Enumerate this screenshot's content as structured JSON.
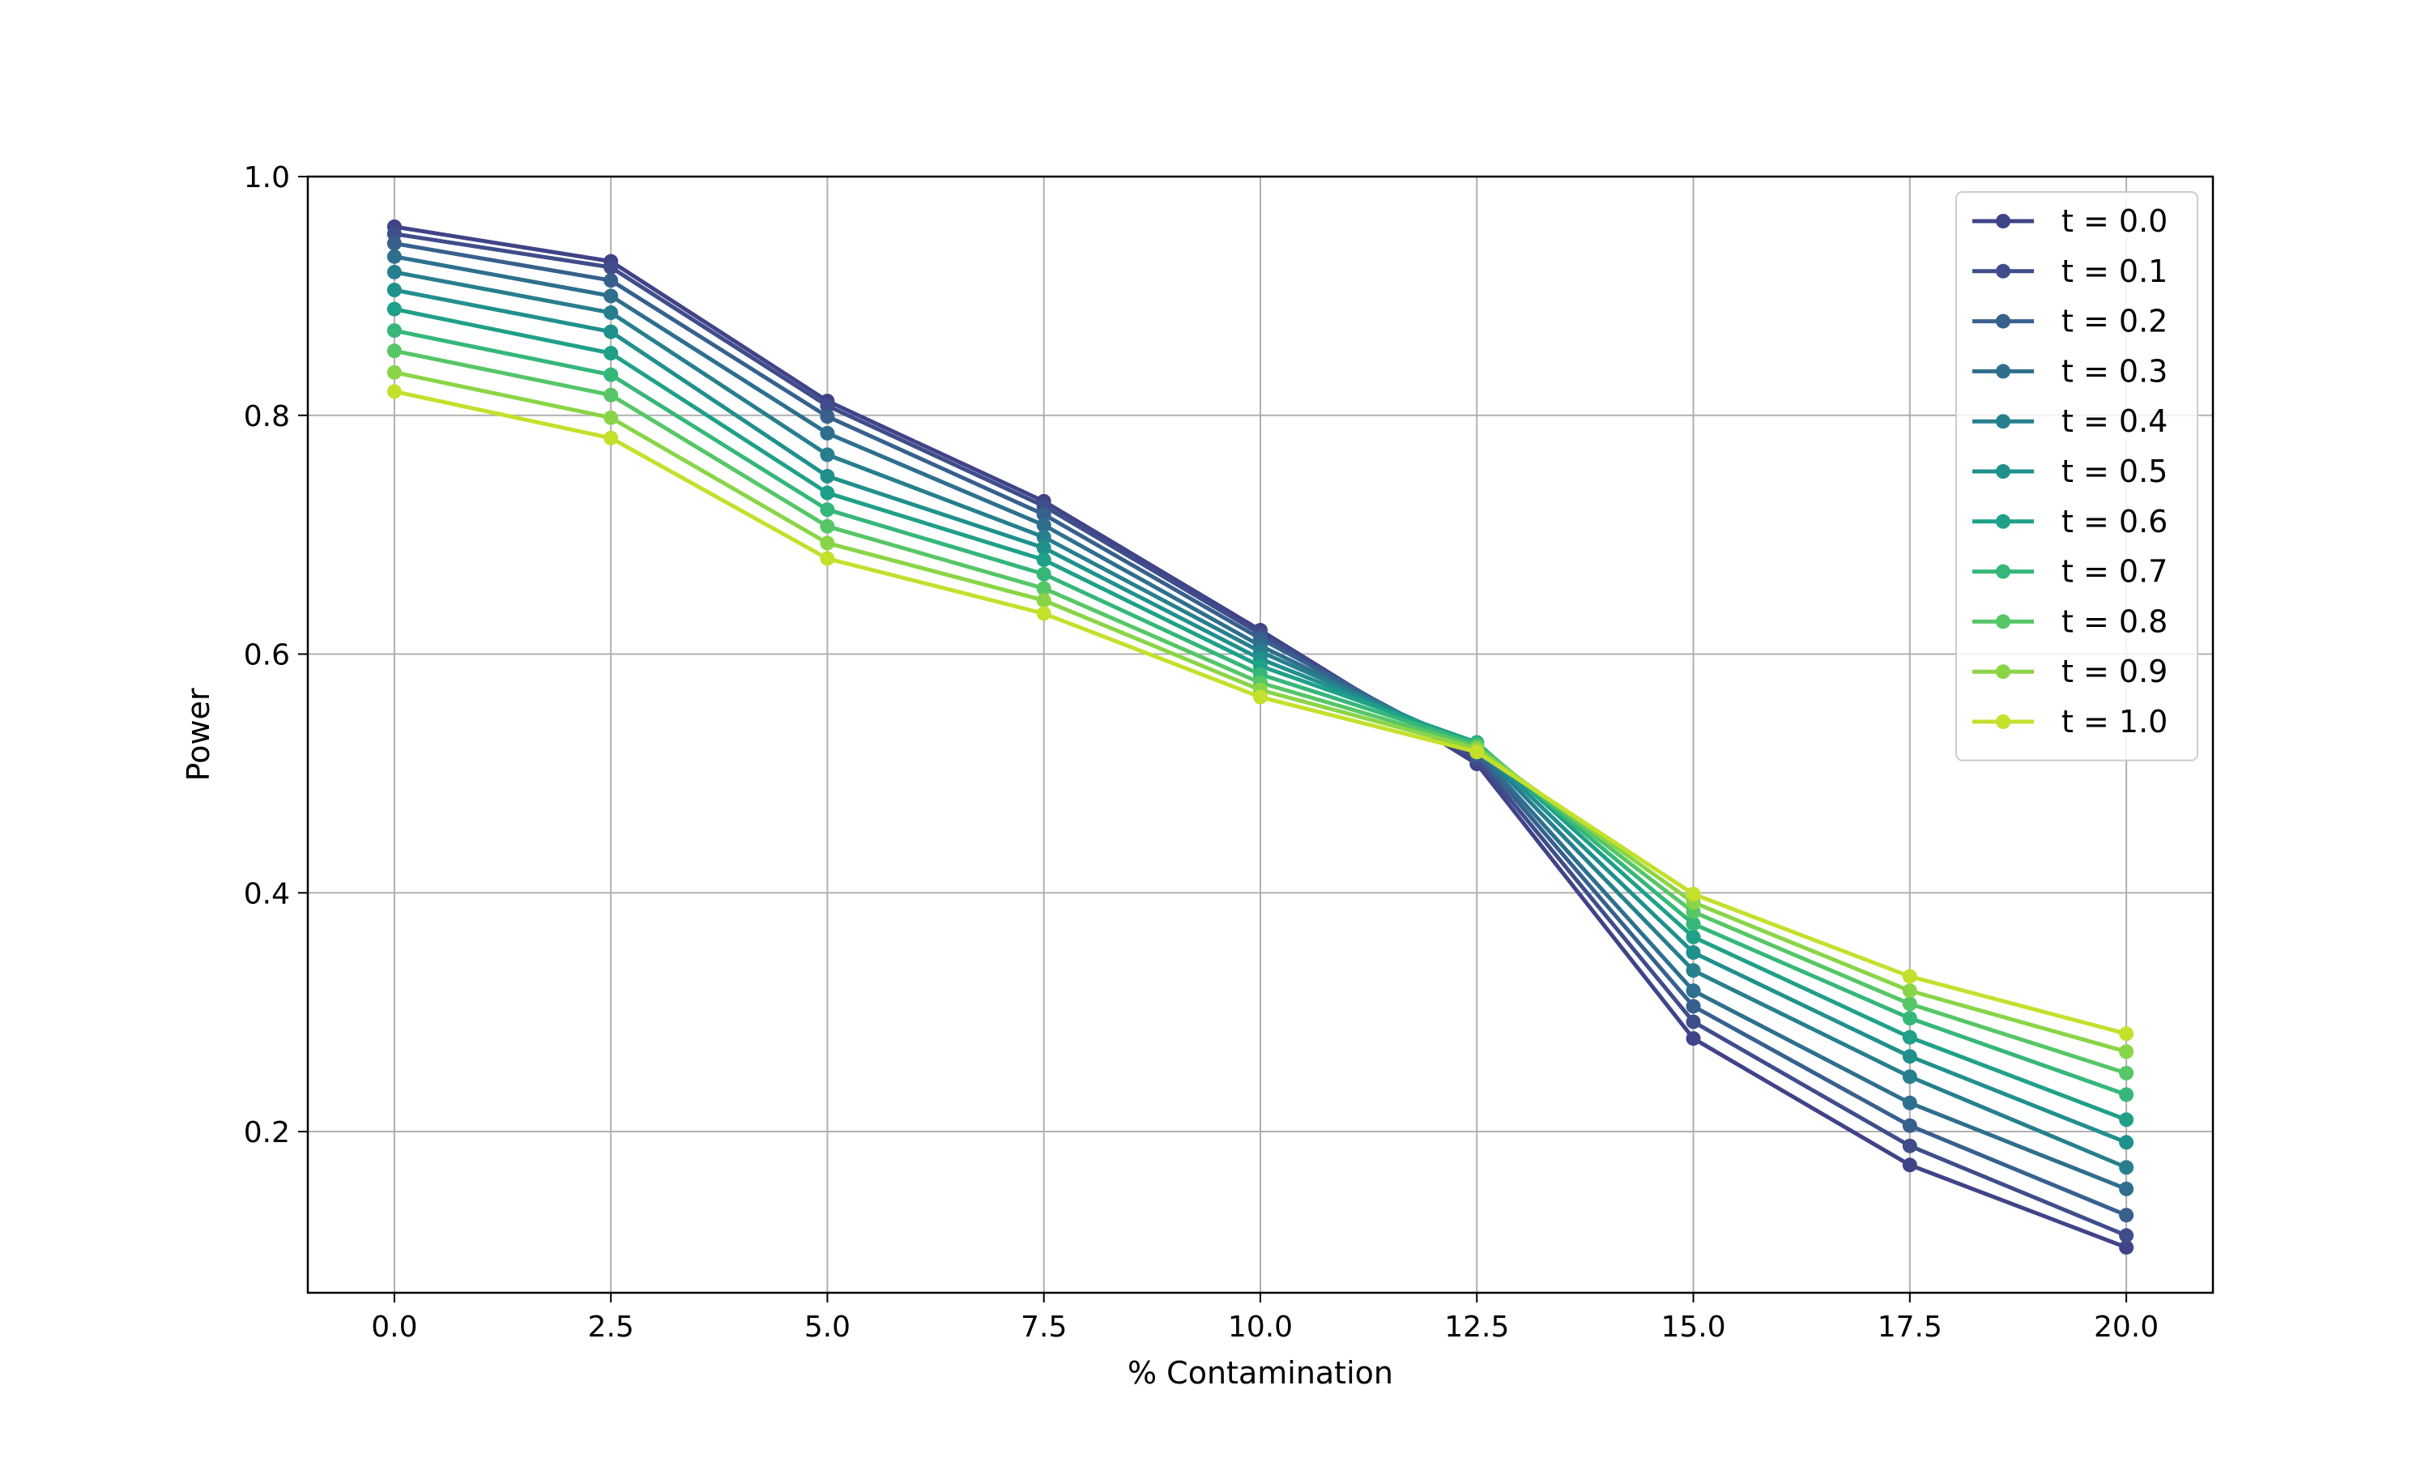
{
  "chart_data": {
    "type": "line",
    "xlabel": "% Contamination",
    "ylabel": "Power",
    "x": [
      0.0,
      2.5,
      5.0,
      7.5,
      10.0,
      12.5,
      15.0,
      17.5,
      20.0
    ],
    "xticks": [
      "0.0",
      "2.5",
      "5.0",
      "7.5",
      "10.0",
      "12.5",
      "15.0",
      "17.5",
      "20.0"
    ],
    "yticks": [
      "0.2",
      "0.4",
      "0.6",
      "0.8",
      "1.0"
    ],
    "xlim": [
      -1.0,
      21.0
    ],
    "ylim": [
      0.065,
      1.0
    ],
    "grid": true,
    "legend_position": "top-right",
    "series": [
      {
        "name": "t = 0.0",
        "color": "#404387",
        "values": [
          0.958,
          0.929,
          0.812,
          0.728,
          0.62,
          0.508,
          0.278,
          0.172,
          0.103
        ]
      },
      {
        "name": "t = 0.1",
        "color": "#3f4d8a",
        "values": [
          0.952,
          0.924,
          0.808,
          0.724,
          0.617,
          0.512,
          0.292,
          0.188,
          0.113
        ]
      },
      {
        "name": "t = 0.2",
        "color": "#37608d",
        "values": [
          0.944,
          0.913,
          0.799,
          0.717,
          0.613,
          0.516,
          0.305,
          0.205,
          0.13
        ]
      },
      {
        "name": "t = 0.3",
        "color": "#2e6f8e",
        "values": [
          0.933,
          0.9,
          0.785,
          0.708,
          0.607,
          0.519,
          0.318,
          0.224,
          0.152
        ]
      },
      {
        "name": "t = 0.4",
        "color": "#277f8e",
        "values": [
          0.92,
          0.886,
          0.767,
          0.698,
          0.602,
          0.522,
          0.335,
          0.246,
          0.17
        ]
      },
      {
        "name": "t = 0.5",
        "color": "#20908d",
        "values": [
          0.905,
          0.87,
          0.749,
          0.689,
          0.596,
          0.524,
          0.35,
          0.263,
          0.191
        ]
      },
      {
        "name": "t = 0.6",
        "color": "#1fa088",
        "values": [
          0.889,
          0.852,
          0.735,
          0.679,
          0.59,
          0.526,
          0.363,
          0.279,
          0.21
        ]
      },
      {
        "name": "t = 0.7",
        "color": "#35b779",
        "values": [
          0.871,
          0.834,
          0.721,
          0.667,
          0.583,
          0.525,
          0.374,
          0.295,
          0.231
        ]
      },
      {
        "name": "t = 0.8",
        "color": "#56c667",
        "values": [
          0.854,
          0.817,
          0.707,
          0.655,
          0.576,
          0.523,
          0.384,
          0.307,
          0.249
        ]
      },
      {
        "name": "t = 0.9",
        "color": "#8ad547",
        "values": [
          0.836,
          0.798,
          0.693,
          0.645,
          0.57,
          0.521,
          0.392,
          0.318,
          0.267
        ]
      },
      {
        "name": "t = 1.0",
        "color": "#c4e02c",
        "values": [
          0.82,
          0.781,
          0.68,
          0.634,
          0.564,
          0.518,
          0.399,
          0.33,
          0.282
        ]
      }
    ]
  }
}
